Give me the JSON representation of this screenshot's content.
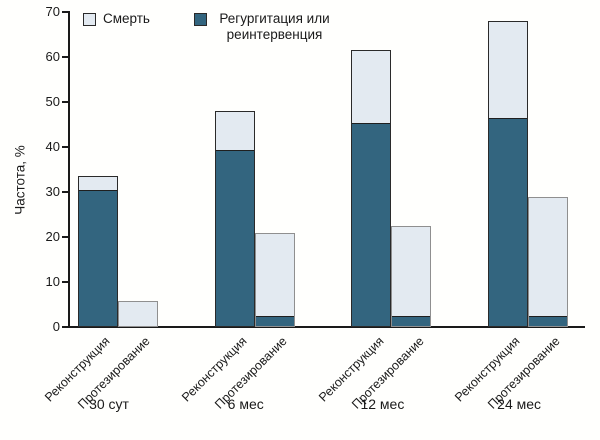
{
  "chart_data": {
    "type": "bar",
    "stacked": true,
    "title": "",
    "ylabel": "Частота, %",
    "ylim": [
      0,
      70
    ],
    "yticks": [
      0,
      10,
      20,
      30,
      40,
      50,
      60,
      70
    ],
    "grid": false,
    "legend_position": "top",
    "legend": [
      {
        "key": "death",
        "label": "Смерть",
        "color": "#e3eaf1"
      },
      {
        "key": "regurg",
        "label": "Регургитация или реинтервенция",
        "color": "#33657f"
      }
    ],
    "bar_labels": [
      "Реконструкция",
      "Протезирование"
    ],
    "groups": [
      {
        "label": "30 сут",
        "bars": [
          {
            "label": "Реконструкция",
            "regurg": 30,
            "death": 3.5,
            "total": 33.5
          },
          {
            "label": "Протезирование",
            "regurg": 0,
            "death": 5.7,
            "total": 5.7
          }
        ]
      },
      {
        "label": "6 мес",
        "bars": [
          {
            "label": "Реконструкция",
            "regurg": 39,
            "death": 9,
            "total": 48
          },
          {
            "label": "Протезирование",
            "regurg": 2,
            "death": 19,
            "total": 21
          }
        ]
      },
      {
        "label": "12 мес",
        "bars": [
          {
            "label": "Реконструкция",
            "regurg": 45,
            "death": 16.5,
            "total": 61.5
          },
          {
            "label": "Протезирование",
            "regurg": 2,
            "death": 20.5,
            "total": 22.5
          }
        ]
      },
      {
        "label": "24 мес",
        "bars": [
          {
            "label": "Реконструкция",
            "regurg": 46,
            "death": 22,
            "total": 68
          },
          {
            "label": "Протезирование",
            "regurg": 2,
            "death": 27,
            "total": 29
          }
        ]
      }
    ],
    "colors": {
      "death": "#e3eaf1",
      "regurg": "#33657f",
      "axis": "#1a1a1a"
    }
  }
}
